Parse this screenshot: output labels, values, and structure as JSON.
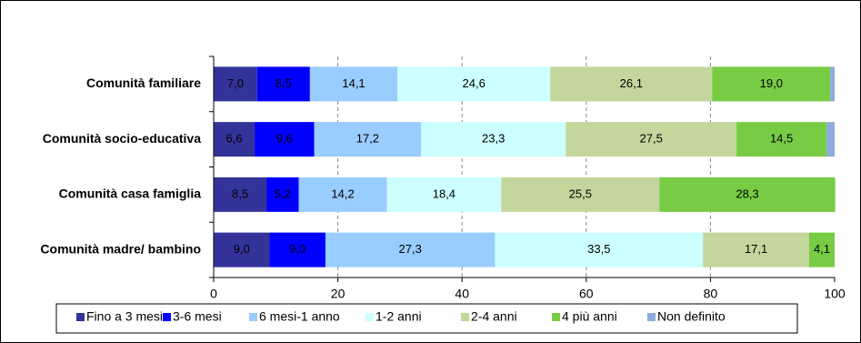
{
  "chart_data": {
    "type": "stacked-bar-horizontal",
    "categories": [
      "Comunità familiare",
      "Comunità socio-educativa",
      "Comunità casa famiglia",
      "Comunità madre/ bambino"
    ],
    "series": [
      {
        "name": "Fino a 3 mesi",
        "color": "#333399",
        "values": [
          7.0,
          6.6,
          8.5,
          9.0
        ],
        "value_labels": [
          "7,0",
          "6,6",
          "8,5",
          "9,0"
        ]
      },
      {
        "name": "3-6 mesi",
        "color": "#0000ff",
        "values": [
          8.5,
          9.6,
          5.2,
          9.0
        ],
        "value_labels": [
          "8,5",
          "9,6",
          "5,2",
          "9,0"
        ]
      },
      {
        "name": "6 mesi-1 anno",
        "color": "#99ccff",
        "values": [
          14.1,
          17.2,
          14.2,
          27.3
        ],
        "value_labels": [
          "14,1",
          "17,2",
          "14,2",
          "27,3"
        ]
      },
      {
        "name": "1-2 anni",
        "color": "#ccffff",
        "values": [
          24.6,
          23.3,
          18.4,
          33.5
        ],
        "value_labels": [
          "24,6",
          "23,3",
          "18,4",
          "33,5"
        ]
      },
      {
        "name": "2-4 anni",
        "color": "#c3d69b",
        "values": [
          26.1,
          27.5,
          25.5,
          17.1
        ],
        "value_labels": [
          "26,1",
          "27,5",
          "25,5",
          "17,1"
        ]
      },
      {
        "name": "4 più anni",
        "color": "#77cc44",
        "values": [
          19.0,
          14.5,
          28.3,
          4.1
        ],
        "value_labels": [
          "19,0",
          "14,5",
          "28,3",
          "4,1"
        ]
      },
      {
        "name": "Non definito",
        "color": "#8eacdb",
        "values": [
          0.7,
          1.3,
          0,
          0
        ]
      }
    ],
    "xlim": [
      0,
      100
    ],
    "xticks": [
      0,
      20,
      40,
      60,
      80,
      100
    ],
    "grid": true
  }
}
